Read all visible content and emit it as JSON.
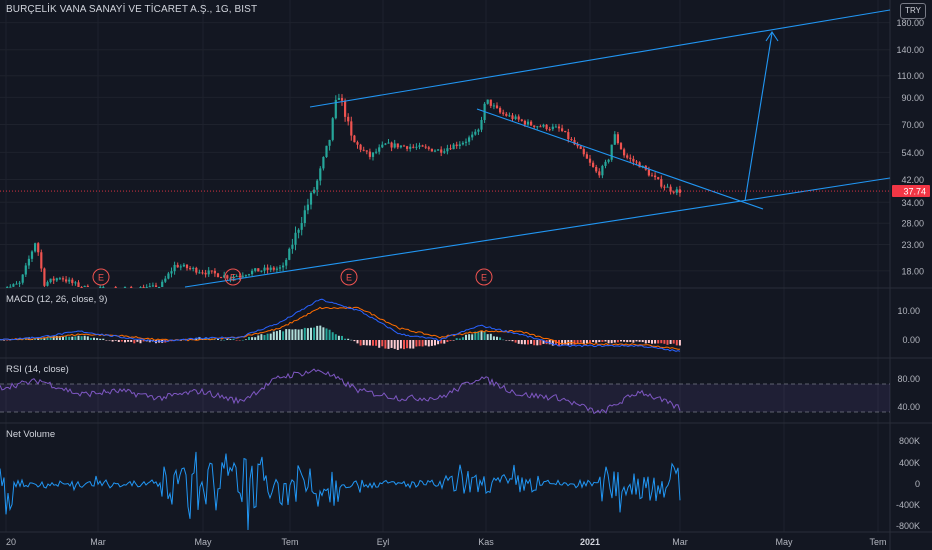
{
  "header": {
    "title": "BURÇELİK VANA SANAYİ VE TİCARET A.Ş., 1G, BIST",
    "currency": "TRY"
  },
  "last_price": "37.74",
  "earnings_marker": "E",
  "panes": {
    "macd_label": "MACD (12, 26, close, 9)",
    "rsi_label": "RSI (14, close)",
    "volume_label": "Net Volume"
  },
  "x_axis": {
    "labels": [
      "20",
      "Mar",
      "May",
      "Tem",
      "Eyl",
      "Kas",
      "2021",
      "Mar",
      "May",
      "Tem"
    ]
  },
  "colors": {
    "background": "#131722",
    "up": "#26a69a",
    "down": "#ef5350",
    "trendline": "#2196f3",
    "macd_line": "#2962ff",
    "signal_line": "#ff6d00",
    "rsi_line": "#7e57c2",
    "volume_line": "#2196f3",
    "price_label": "#f23645"
  },
  "chart_data": [
    {
      "type": "candlestick",
      "title": "BURÇELİK VANA SANAYİ VE TİCARET A.Ş., 1G, BIST",
      "y_scale": "log",
      "y_ticks": [
        "18.00",
        "23.00",
        "28.00",
        "34.00",
        "42.00",
        "54.00",
        "70.00",
        "90.00",
        "110.00",
        "140.00",
        "180.00"
      ],
      "ylim": [
        15.5,
        210
      ],
      "approx_close_path": [
        {
          "x": "Ocak 2020",
          "y": 15
        },
        {
          "x": "Şub 2020",
          "y": 23
        },
        {
          "x": "Mar 2020",
          "y": 16
        },
        {
          "x": "Nis 2020",
          "y": 20
        },
        {
          "x": "May 2020",
          "y": 19
        },
        {
          "x": "Haz 2020",
          "y": 20
        },
        {
          "x": "Tem 2020",
          "y": 38
        },
        {
          "x": "Ağu 2020",
          "y": 95
        },
        {
          "x": "Ağu 2020",
          "y": 60
        },
        {
          "x": "Eyl 2020",
          "y": 58
        },
        {
          "x": "Eki 2020",
          "y": 57
        },
        {
          "x": "Kas 2020",
          "y": 87
        },
        {
          "x": "Ara 2020",
          "y": 62
        },
        {
          "x": "Oca 2021",
          "y": 42
        },
        {
          "x": "Oca 2021",
          "y": 62
        },
        {
          "x": "Şub 2021",
          "y": 42
        },
        {
          "x": "Mar 2021",
          "y": 37.74
        }
      ],
      "earnings_events": [
        "Mar 2020",
        "May 2020",
        "Ağu 2020",
        "Kas 2020"
      ]
    },
    {
      "type": "line",
      "title": "MACD (12, 26, close, 9)",
      "y_ticks": [
        "10.00",
        "0.00"
      ],
      "series": [
        {
          "name": "MACD",
          "values": [
            0,
            1,
            3,
            1,
            -0.5,
            0.5,
            1,
            6,
            14,
            10,
            2,
            0,
            5,
            2,
            -2,
            -2,
            -2,
            -4
          ]
        },
        {
          "name": "Signal",
          "values": [
            0,
            0.5,
            2,
            1.5,
            0,
            0,
            1,
            4,
            11,
            11,
            4,
            1,
            3,
            3,
            -1,
            -1.5,
            -1.5,
            -3
          ]
        }
      ]
    },
    {
      "type": "line",
      "title": "RSI (14, close)",
      "y_ticks": [
        "80.00",
        "40.00"
      ],
      "bands": [
        70,
        30
      ],
      "values": [
        65,
        75,
        55,
        60,
        50,
        60,
        45,
        80,
        90,
        60,
        50,
        50,
        80,
        55,
        50,
        28,
        60,
        35
      ]
    },
    {
      "type": "line",
      "title": "Net Volume",
      "y_ticks": [
        "800K",
        "400K",
        "0",
        "-400K",
        "-800K"
      ]
    }
  ]
}
